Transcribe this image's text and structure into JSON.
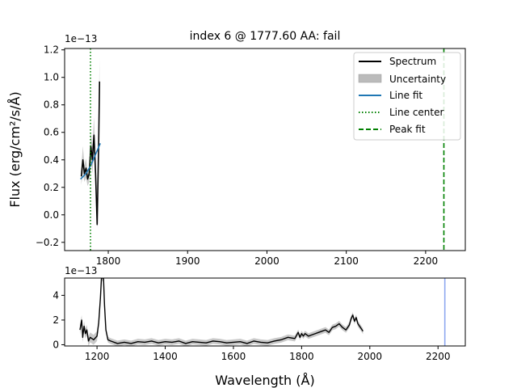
{
  "chart_data": [
    {
      "type": "line",
      "title": "index 6 @ 1777.60 AA: fail",
      "ylabel": "Flux (erg/cm²/s/Å)",
      "y_offset_text": "1e−13",
      "xlim": [
        1745,
        2250
      ],
      "ylim": [
        -0.26,
        1.21
      ],
      "x_ticks": [
        1800,
        1900,
        2000,
        2100,
        2200
      ],
      "y_ticks": [
        -0.2,
        0.0,
        0.2,
        0.4,
        0.6,
        0.8,
        1.0,
        1.2
      ],
      "x_tick_labels": [
        "1800",
        "1900",
        "2000",
        "2100",
        "2200"
      ],
      "y_tick_labels": [
        "−0.2",
        "0.0",
        "0.2",
        "0.4",
        "0.6",
        "0.8",
        "1.0",
        "1.2"
      ],
      "legend_position": "top-right",
      "legend": [
        "Spectrum",
        "Uncertainty",
        "Line fit",
        "Line center",
        "Peak fit"
      ],
      "colors": {
        "spectrum": "#000000",
        "uncertainty": "#bbbbbb",
        "line_fit": "#1f77b4",
        "line_center": "#008000",
        "peak_fit": "#008000"
      },
      "spectrum": {
        "x": [
          1766,
          1768,
          1770,
          1772,
          1774,
          1776,
          1778,
          1780,
          1782,
          1784,
          1786,
          1788,
          1789
        ],
        "y": [
          0.28,
          0.4,
          0.3,
          0.34,
          0.26,
          0.3,
          0.5,
          0.4,
          0.58,
          0.3,
          -0.07,
          0.55,
          0.97
        ]
      },
      "uncertainty": {
        "x": [
          1766,
          1768,
          1770,
          1772,
          1774,
          1776,
          1778,
          1780,
          1782,
          1784,
          1786,
          1788,
          1789
        ],
        "lower": [
          0.22,
          0.3,
          0.24,
          0.27,
          0.21,
          0.24,
          0.4,
          0.3,
          0.45,
          0.2,
          -0.1,
          0.4,
          0.8
        ],
        "upper": [
          0.34,
          0.5,
          0.36,
          0.41,
          0.31,
          0.36,
          0.6,
          0.5,
          0.71,
          0.4,
          0.0,
          0.7,
          1.14
        ]
      },
      "line_fit": {
        "x": [
          1765,
          1772,
          1778,
          1784,
          1790
        ],
        "y": [
          0.26,
          0.3,
          0.36,
          0.44,
          0.52
        ]
      },
      "line_center_x": 1777.6,
      "peak_fit_x": 2223
    },
    {
      "type": "line",
      "xlabel": "Wavelength (Å)",
      "y_offset_text": "1e−13",
      "xlim": [
        1105,
        2280
      ],
      "ylim": [
        -0.1,
        5.4
      ],
      "x_ticks": [
        1200,
        1400,
        1600,
        1800,
        2000,
        2200
      ],
      "y_ticks": [
        0,
        2,
        4
      ],
      "x_tick_labels": [
        "1200",
        "1400",
        "1600",
        "1800",
        "2000",
        "2200"
      ],
      "y_tick_labels": [
        "0",
        "2",
        "4"
      ],
      "colors": {
        "spectrum": "#000000",
        "uncertainty": "#bbbbbb",
        "marker_line": "#8fa8f0"
      },
      "spectrum": {
        "x": [
          1150,
          1155,
          1158,
          1162,
          1166,
          1170,
          1175,
          1180,
          1190,
          1200,
          1205,
          1210,
          1213,
          1216,
          1219,
          1222,
          1226,
          1232,
          1240,
          1260,
          1280,
          1300,
          1320,
          1340,
          1360,
          1380,
          1400,
          1420,
          1440,
          1460,
          1480,
          1500,
          1520,
          1540,
          1560,
          1580,
          1600,
          1620,
          1640,
          1660,
          1680,
          1700,
          1720,
          1740,
          1760,
          1780,
          1790,
          1795,
          1800,
          1805,
          1810,
          1820,
          1830,
          1840,
          1850,
          1860,
          1870,
          1880,
          1890,
          1900,
          1910,
          1920,
          1930,
          1940,
          1945,
          1950,
          1955,
          1960,
          1965,
          1970,
          1975,
          1980
        ],
        "y": [
          1.2,
          2.0,
          0.6,
          1.5,
          0.9,
          1.2,
          0.3,
          0.6,
          0.4,
          0.7,
          1.8,
          3.8,
          5.4,
          5.4,
          5.4,
          3.2,
          1.2,
          0.4,
          0.3,
          0.1,
          0.2,
          0.1,
          0.25,
          0.2,
          0.3,
          0.15,
          0.25,
          0.2,
          0.3,
          0.1,
          0.25,
          0.2,
          0.15,
          0.3,
          0.25,
          0.15,
          0.2,
          0.25,
          0.1,
          0.3,
          0.2,
          0.15,
          0.3,
          0.4,
          0.6,
          0.5,
          1.0,
          0.6,
          0.9,
          0.7,
          0.9,
          0.7,
          0.8,
          0.9,
          1.0,
          1.1,
          1.2,
          1.0,
          1.4,
          1.5,
          1.7,
          1.4,
          1.2,
          1.6,
          2.1,
          2.4,
          1.9,
          2.2,
          1.7,
          1.5,
          1.3,
          1.1
        ]
      },
      "marker_line_x": 2220
    }
  ]
}
